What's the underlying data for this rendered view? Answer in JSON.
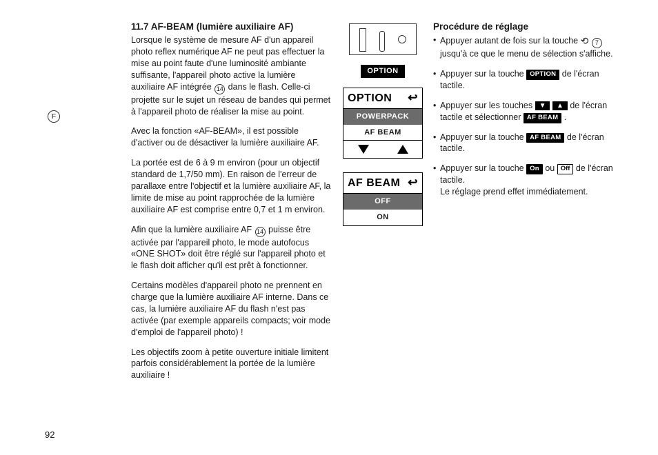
{
  "page_marker": "F",
  "page_num": "92",
  "left": {
    "heading": "11.7 AF-BEAM (lumière auxiliaire AF)",
    "p1a": "Lorsque le système de mesure AF d'un appareil photo reflex numérique AF ne peut pas effectuer la mise au point faute d'une luminosité ambiante suffisante, l'appareil photo active la lumière auxiliaire AF intégrée ",
    "p1b": " dans le flash. Celle-ci projette sur le sujet un réseau de bandes qui permet à l'appareil photo de réaliser la mise au point.",
    "p2": "Avec la fonction «AF-BEAM», il est possible d'activer ou de désactiver la lumière auxiliaire AF.",
    "p3": "La portée est de 6 à 9 m environ (pour un objectif standard de 1,7/50 mm). En raison de l'erreur de parallaxe entre l'objectif et la lumière auxiliaire AF, la limite de mise au point rapprochée de la lumière auxiliaire AF est comprise entre 0,7 et 1 m environ.",
    "p4a": "Afin que la lumière auxiliaire AF ",
    "p4b": " puisse être activée par l'appareil photo, le mode autofocus «ONE SHOT» doit être réglé sur l'appareil photo et le flash doit afficher qu'il est prêt à fonctionner.",
    "p5": "Certains modèles d'appareil photo ne prennent en charge que la lumière auxiliaire AF interne. Dans ce cas, la lumière auxiliaire AF du flash n'est pas activée (par exemple appareils compacts; voir mode d'emploi de l'appareil photo) !",
    "p6": "Les objectifs zoom à petite ouverture initiale limitent parfois considérablement la portée de la lumière auxiliaire !",
    "ref14": "14"
  },
  "mid": {
    "option_chip": "OPTION",
    "panel1": {
      "title": "OPTION",
      "row1": "POWERPACK",
      "row2": "AF BEAM"
    },
    "panel2": {
      "title": "AF BEAM",
      "row1": "OFF",
      "row2": "ON"
    }
  },
  "right": {
    "heading": "Procédure de réglage",
    "b1a": "Appuyer autant de fois sur la touche  ",
    "b1b": " jusqu'à ce que le menu de sélection s'affiche.",
    "b2a": "Appuyer sur la touche ",
    "b2b": " de l'écran tactile.",
    "b3a": "Appuyer sur les touches ",
    "b3b": " de l'écran tactile et sélectionner ",
    "b3c": " .",
    "b4a": "Appuyer sur la touche  ",
    "b4b": " de l'écran tactile.",
    "b5a": "Appuyer sur la touche ",
    "b5b": " ou ",
    "b5c": " de l'écran tactile.",
    "b5d": "Le réglage prend effet immédiatement.",
    "chips": {
      "option": "OPTION",
      "afbeam": "AF BEAM",
      "on": "On",
      "off": "Off"
    },
    "ref7": "7"
  }
}
